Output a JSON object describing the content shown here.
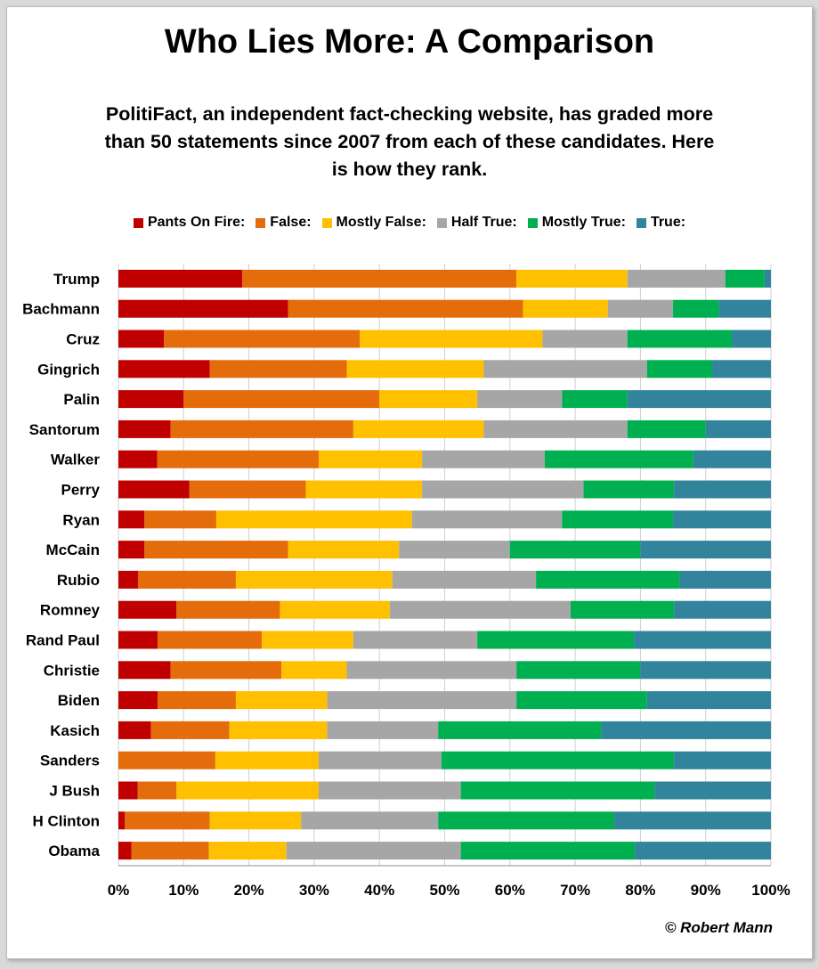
{
  "chart_data": {
    "type": "bar",
    "orientation": "horizontal",
    "stacked": "100%",
    "title": "Who Lies More: A Comparison",
    "subtitle": "PolitiFact, an independent fact-checking website, has graded more than 50 statements since 2007 from each of these candidates. Here is how they rank.",
    "credit": "© Robert Mann",
    "legend_position": "top",
    "grid": true,
    "xlim": [
      0,
      100
    ],
    "x_ticks": [
      "0%",
      "10%",
      "20%",
      "30%",
      "40%",
      "50%",
      "60%",
      "70%",
      "80%",
      "90%",
      "100%"
    ],
    "categories": [
      "Trump",
      "Bachmann",
      "Cruz",
      "Gingrich",
      "Palin",
      "Santorum",
      "Walker",
      "Perry",
      "Ryan",
      "McCain",
      "Rubio",
      "Romney",
      "Rand Paul",
      "Christie",
      "Biden",
      "Kasich",
      "Sanders",
      "J Bush",
      "H Clinton",
      "Obama"
    ],
    "series": [
      {
        "name": "Pants On Fire:",
        "color": "#c00000",
        "values": [
          19,
          26,
          7,
          14,
          10,
          8,
          6,
          11,
          4,
          4,
          3,
          9,
          6,
          8,
          6,
          5,
          0,
          3,
          1,
          2
        ]
      },
      {
        "name": "False:",
        "color": "#e46c0a",
        "values": [
          42,
          36,
          30,
          21,
          30,
          28,
          25,
          18,
          11,
          22,
          15,
          16,
          16,
          17,
          12,
          12,
          15,
          6,
          13,
          12
        ]
      },
      {
        "name": "Mostly False:",
        "color": "#ffc000",
        "values": [
          17,
          13,
          28,
          21,
          15,
          20,
          16,
          18,
          30,
          17,
          24,
          17,
          14,
          10,
          14,
          15,
          16,
          22,
          14,
          12
        ]
      },
      {
        "name": "Half True:",
        "color": "#a6a6a6",
        "values": [
          15,
          10,
          13,
          25,
          13,
          22,
          19,
          25,
          23,
          17,
          22,
          28,
          19,
          26,
          29,
          17,
          19,
          22,
          21,
          27
        ]
      },
      {
        "name": "Mostly True:",
        "color": "#00b050",
        "values": [
          6,
          7,
          16,
          10,
          10,
          12,
          23,
          14,
          17,
          20,
          22,
          16,
          24,
          19,
          20,
          25,
          36,
          30,
          27,
          27
        ]
      },
      {
        "name": "True:",
        "color": "#31849b",
        "values": [
          1,
          8,
          6,
          9,
          22,
          10,
          12,
          15,
          15,
          20,
          14,
          15,
          21,
          20,
          19,
          26,
          15,
          18,
          24,
          21
        ]
      }
    ]
  }
}
